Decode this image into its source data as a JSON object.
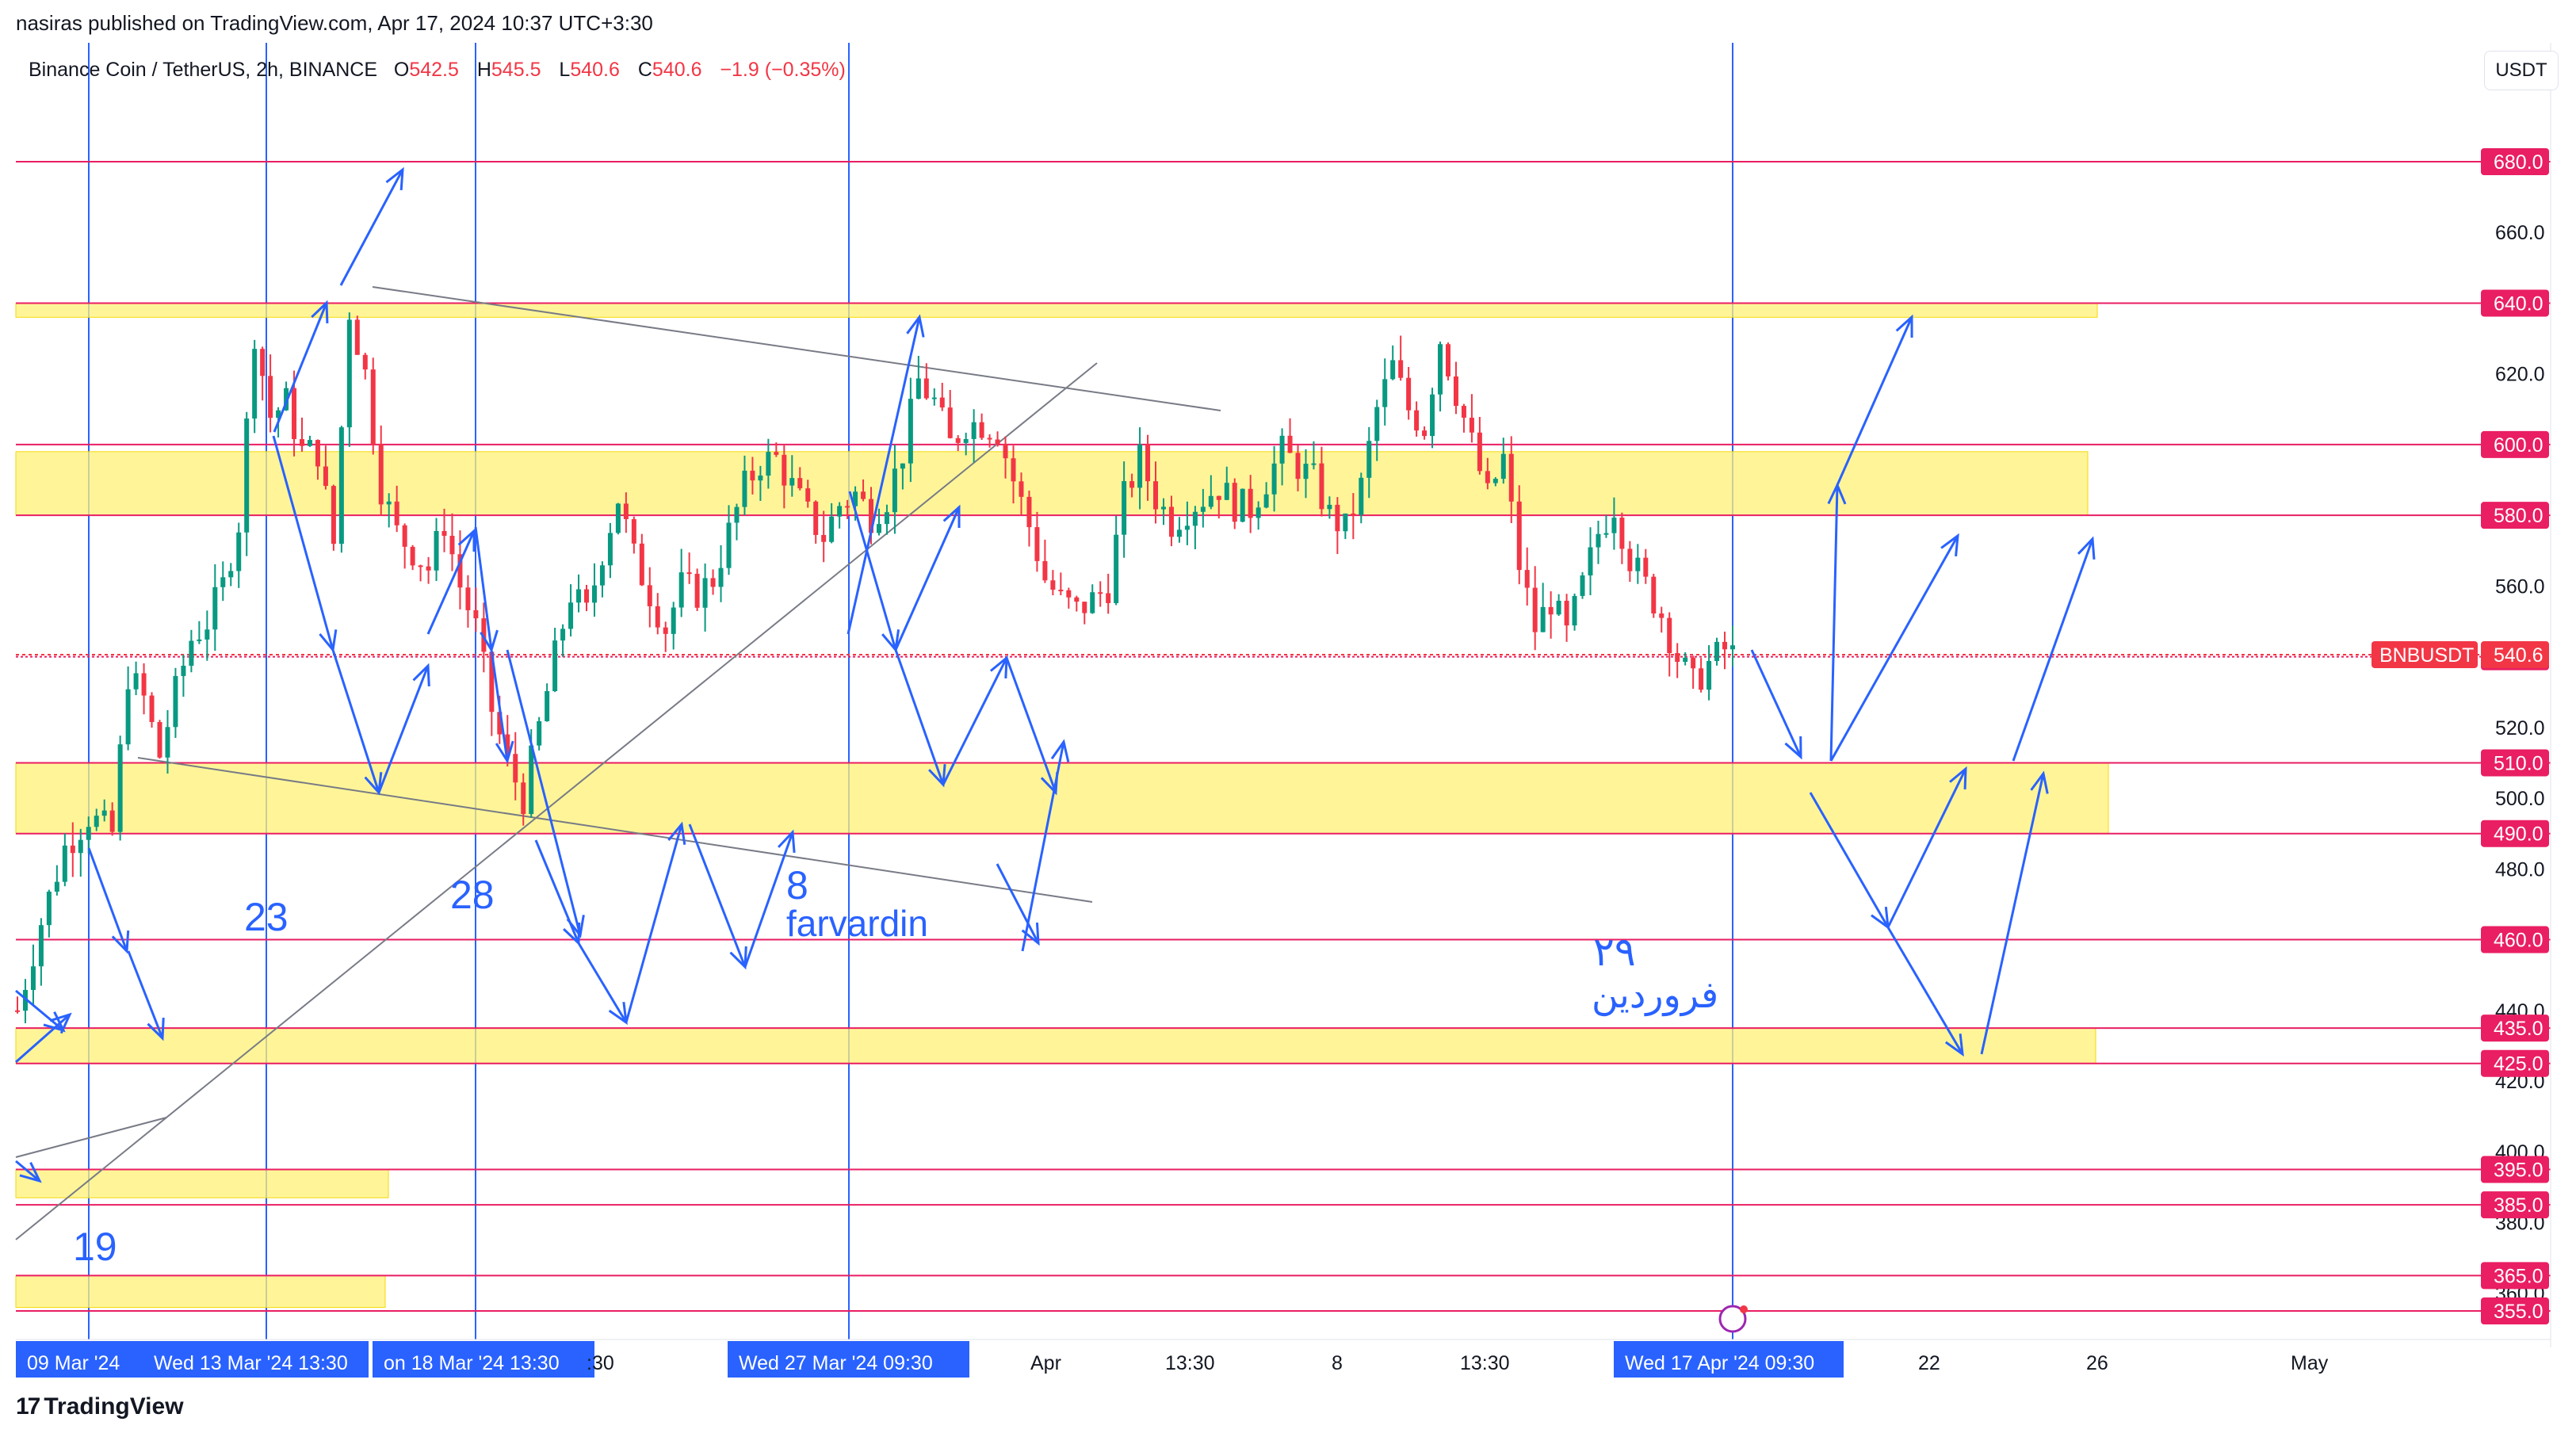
{
  "publisher_line": "nasiras published on TradingView.com, Apr 17, 2024 10:37 UTC+3:30",
  "logo_text": "TradingView",
  "currency_button": "USDT",
  "symbol_header": {
    "title": "Binance Coin / TetherUS, 2h, BINANCE",
    "open_label": "O",
    "open": "542.5",
    "high_label": "H",
    "high": "545.5",
    "low_label": "L",
    "low": "540.6",
    "close_label": "C",
    "close": "540.6",
    "change": "−1.9 (−0.35%)"
  },
  "colors": {
    "candle_up": "#089981",
    "candle_down": "#f23645",
    "level_line": "#e91e63",
    "zone_fill": "#fff176",
    "annotation_blue": "#2962ff",
    "trendline": "#787b86",
    "price_tag": "#f23645",
    "axis_text": "#131722"
  },
  "annotations": {
    "label_19": "19",
    "label_23": "23",
    "label_28": "28",
    "label_8": "8",
    "label_farvardin": "farvardin",
    "label_29_persian": "۲۹",
    "label_farvardin_persian": "فروردین"
  },
  "chart_data": {
    "type": "candlestick",
    "symbol": "BNBUSDT",
    "interval": "2h",
    "ylim": [
      342,
      695
    ],
    "price_axis_ticks": [
      680.0,
      660.0,
      640.0,
      620.0,
      600.0,
      580.0,
      560.0,
      540.0,
      520.0,
      500.0,
      480.0,
      460.0,
      440.0,
      420.0,
      400.0,
      380.0,
      360.0
    ],
    "x_axis_labels": [
      "09 Mar '24",
      "Wed 13 Mar '24  13:30",
      "on 18 Mar '24  13:30",
      ":30",
      "Wed 27 Mar '24  09:30",
      "Apr",
      "13:30",
      "8",
      "13:30",
      "Wed 17 Apr '24  09:30",
      "22",
      "26",
      "May"
    ],
    "x_axis_highlighted": [
      "09 Mar '24",
      "Wed 13 Mar '24  13:30",
      "on 18 Mar '24  13:30",
      "Wed 27 Mar '24  09:30",
      "Wed 17 Apr '24  09:30"
    ],
    "last_price": 540.6,
    "last_price_label": "BNBUSDT",
    "horizontal_levels": [
      680.0,
      640.0,
      600.0,
      580.0,
      540.0,
      510.0,
      490.0,
      460.0,
      435.0,
      425.0,
      395.0,
      385.0,
      365.0,
      355.0
    ],
    "zones": [
      [
        640,
        636
      ],
      [
        598,
        580
      ],
      [
        510,
        490
      ],
      [
        435,
        425
      ],
      [
        395,
        387
      ],
      [
        365,
        356
      ]
    ],
    "price_path": [
      [
        0,
        440
      ],
      [
        3,
        465
      ],
      [
        6,
        486
      ],
      [
        9,
        495
      ],
      [
        12,
        490
      ],
      [
        14,
        535
      ],
      [
        16,
        528
      ],
      [
        18,
        512
      ],
      [
        20,
        530
      ],
      [
        22,
        545
      ],
      [
        24,
        550
      ],
      [
        26,
        560
      ],
      [
        28,
        578
      ],
      [
        30,
        632
      ],
      [
        32,
        608
      ],
      [
        34,
        612
      ],
      [
        36,
        598
      ],
      [
        38,
        598
      ],
      [
        40,
        572
      ],
      [
        42,
        638
      ],
      [
        44,
        620
      ],
      [
        46,
        588
      ],
      [
        48,
        575
      ],
      [
        50,
        570
      ],
      [
        52,
        565
      ],
      [
        54,
        578
      ],
      [
        56,
        560
      ],
      [
        58,
        548
      ],
      [
        60,
        525
      ],
      [
        62,
        510
      ],
      [
        64,
        500
      ],
      [
        66,
        520
      ],
      [
        68,
        540
      ],
      [
        70,
        558
      ],
      [
        72,
        552
      ],
      [
        74,
        570
      ],
      [
        76,
        585
      ],
      [
        78,
        568
      ],
      [
        80,
        558
      ],
      [
        82,
        548
      ],
      [
        84,
        560
      ],
      [
        86,
        558
      ],
      [
        88,
        562
      ],
      [
        90,
        575
      ],
      [
        92,
        588
      ],
      [
        94,
        595
      ],
      [
        96,
        596
      ],
      [
        98,
        588
      ],
      [
        100,
        580
      ],
      [
        102,
        574
      ],
      [
        104,
        583
      ],
      [
        106,
        586
      ],
      [
        108,
        580
      ],
      [
        110,
        585
      ],
      [
        112,
        598
      ],
      [
        114,
        618
      ],
      [
        116,
        612
      ],
      [
        118,
        600
      ],
      [
        120,
        606
      ],
      [
        122,
        606
      ],
      [
        124,
        604
      ],
      [
        126,
        590
      ],
      [
        128,
        577
      ],
      [
        130,
        562
      ],
      [
        132,
        556
      ],
      [
        134,
        553
      ],
      [
        136,
        556
      ],
      [
        138,
        560
      ],
      [
        140,
        585
      ],
      [
        142,
        596
      ],
      [
        144,
        585
      ],
      [
        146,
        578
      ],
      [
        148,
        582
      ],
      [
        150,
        585
      ],
      [
        152,
        588
      ],
      [
        154,
        583
      ],
      [
        156,
        582
      ],
      [
        158,
        590
      ],
      [
        160,
        598
      ],
      [
        162,
        594
      ],
      [
        164,
        590
      ],
      [
        166,
        580
      ],
      [
        168,
        576
      ],
      [
        170,
        588
      ],
      [
        172,
        610
      ],
      [
        174,
        622
      ],
      [
        176,
        610
      ],
      [
        178,
        605
      ],
      [
        180,
        630
      ],
      [
        182,
        615
      ],
      [
        184,
        600
      ],
      [
        186,
        585
      ],
      [
        188,
        596
      ],
      [
        190,
        566
      ],
      [
        192,
        548
      ],
      [
        194,
        556
      ],
      [
        196,
        546
      ],
      [
        198,
        560
      ],
      [
        200,
        575
      ],
      [
        202,
        583
      ],
      [
        204,
        568
      ],
      [
        206,
        560
      ],
      [
        208,
        552
      ],
      [
        210,
        540
      ],
      [
        212,
        532
      ],
      [
        214,
        538
      ],
      [
        216,
        542
      ],
      [
        217,
        540.6
      ]
    ],
    "candle_count": 218
  }
}
